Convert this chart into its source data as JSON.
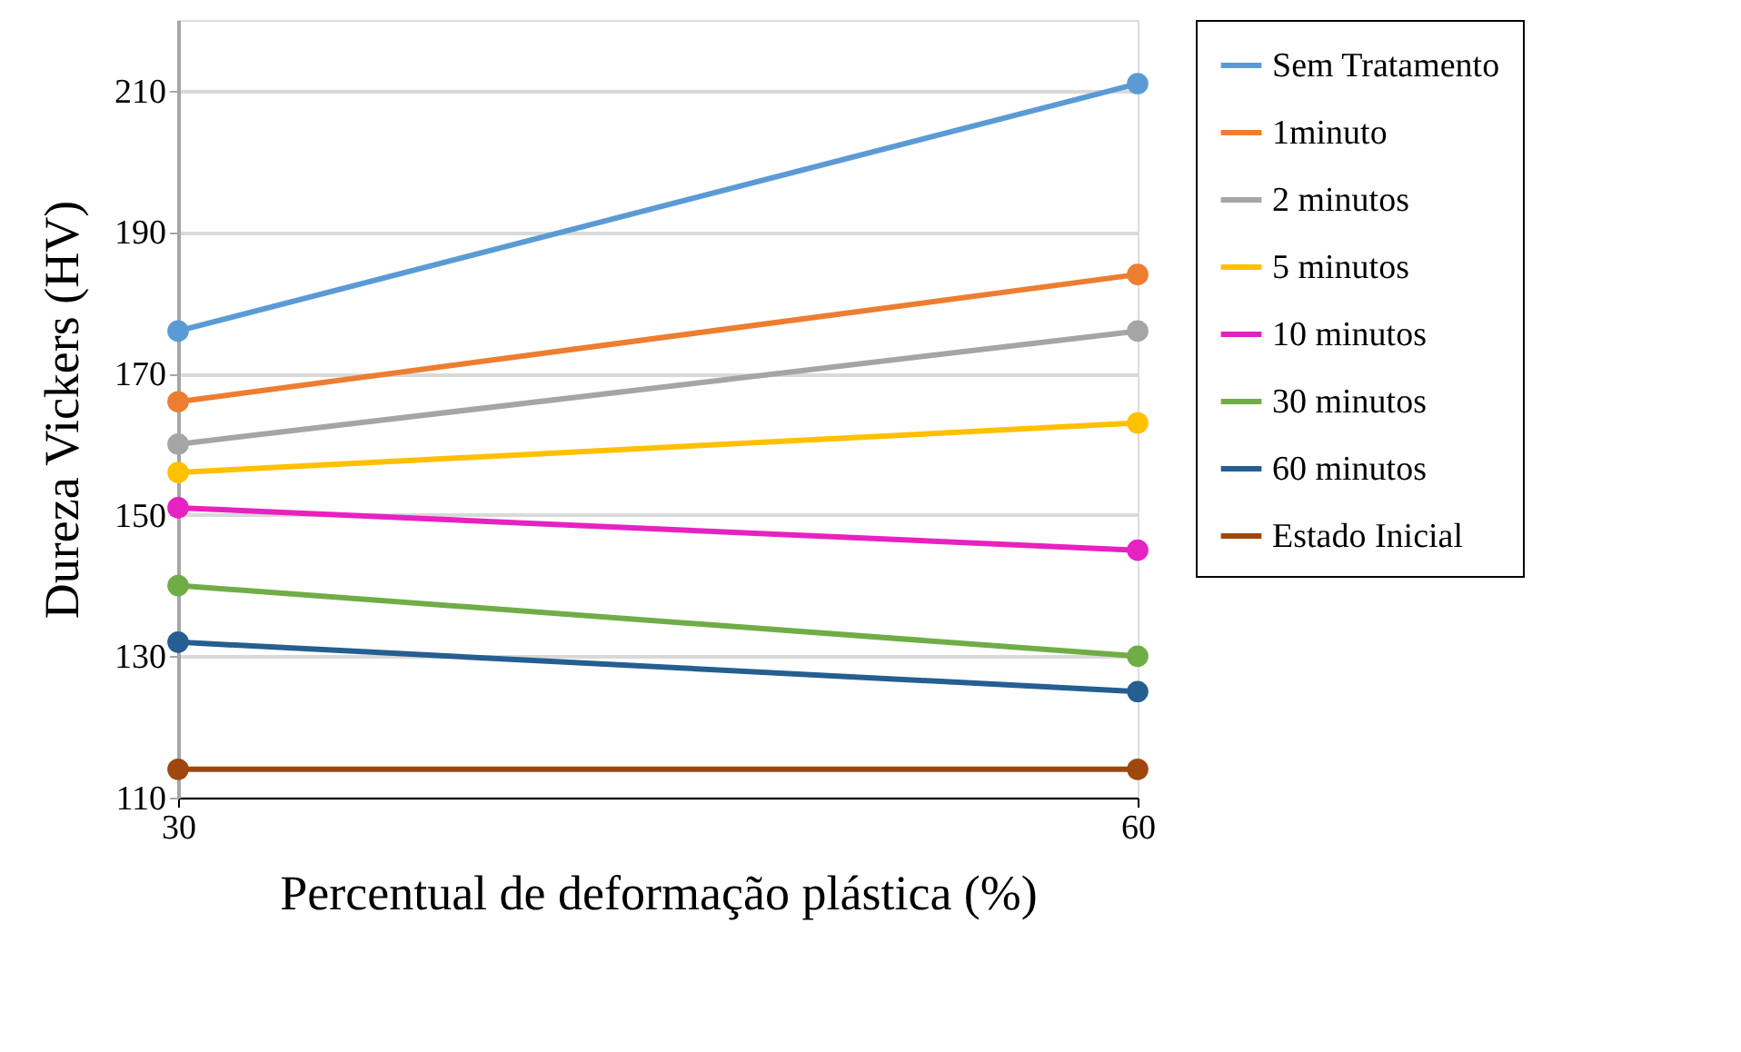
{
  "chart_data": {
    "type": "line",
    "xlabel": "Percentual de deformação plástica (%)",
    "ylabel": "Dureza Vickers (HV)",
    "x": [
      30,
      60
    ],
    "xlim": [
      30,
      60
    ],
    "xticks": [
      30,
      60
    ],
    "ylim": [
      110,
      220
    ],
    "yticks": [
      110,
      130,
      150,
      170,
      190,
      210
    ],
    "grid": "y",
    "legend": "right",
    "marker": "circle",
    "line_style": "solid",
    "series": [
      {
        "name": "Sem Tratamento",
        "color": "#5b9bd5",
        "values": [
          176,
          211
        ]
      },
      {
        "name": "1minuto",
        "color": "#ed7d31",
        "values": [
          166,
          184
        ]
      },
      {
        "name": "2 minutos",
        "color": "#a5a5a5",
        "values": [
          160,
          176
        ]
      },
      {
        "name": "5 minutos",
        "color": "#ffc000",
        "values": [
          156,
          163
        ]
      },
      {
        "name": "10 minutos",
        "color": "#e622c1",
        "values": [
          151,
          145
        ]
      },
      {
        "name": "30 minutos",
        "color": "#70ad47",
        "values": [
          140,
          130
        ]
      },
      {
        "name": "60 minutos",
        "color": "#255e91",
        "values": [
          132,
          125
        ]
      },
      {
        "name": "Estado Inicial",
        "color": "#9e480e",
        "values": [
          114,
          114
        ]
      }
    ]
  }
}
